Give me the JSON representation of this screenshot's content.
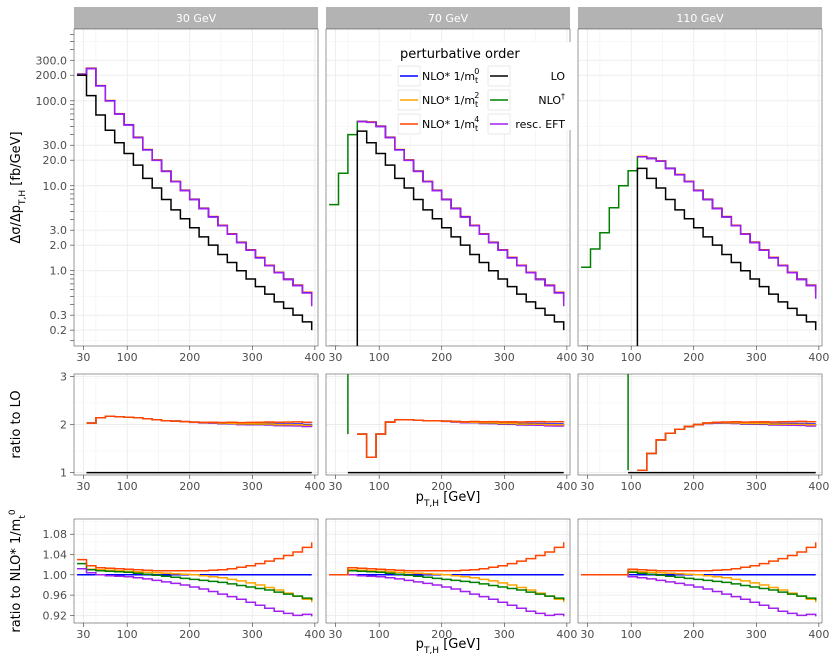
{
  "colors": {
    "nlo0": "#0000ff",
    "nlo2": "#ffa500",
    "nlo4": "#ff4500",
    "lo": "#000000",
    "nlod": "#008000",
    "eft": "#a020f0"
  },
  "legend": {
    "title": "perturbative order",
    "entries": [
      {
        "key": "nlo0",
        "label": "NLO* 1/m",
        "sup": "0",
        "sub": "t"
      },
      {
        "key": "nlo2",
        "label": "NLO* 1/m",
        "sup": "2",
        "sub": "t"
      },
      {
        "key": "nlo4",
        "label": "NLO* 1/m",
        "sup": "4",
        "sub": "t"
      },
      {
        "key": "lo",
        "label": "LO",
        "sup": "",
        "sub": ""
      },
      {
        "key": "nlod",
        "label": "NLO",
        "sup": "†",
        "sub": ""
      },
      {
        "key": "eft",
        "label": "resc. EFT",
        "sup": "",
        "sub": ""
      }
    ]
  },
  "chart_data": {
    "type": "line",
    "facets": [
      "30 GeV",
      "70 GeV",
      "110 GeV"
    ],
    "x_edges": [
      20,
      30,
      40,
      50,
      60,
      70,
      80,
      90,
      100,
      110,
      120,
      130,
      140,
      150,
      160,
      170,
      180,
      190,
      200,
      210,
      220,
      230,
      240,
      250,
      260,
      270,
      280,
      290,
      300,
      310,
      320,
      330,
      340,
      350,
      360,
      370,
      380,
      390,
      400
    ],
    "xticks": [
      30,
      100,
      200,
      300,
      400
    ],
    "xlim": [
      15,
      405
    ],
    "xlabel": {
      "main": "p",
      "sub": "T,H",
      "unit": " [GeV]"
    },
    "rows": [
      {
        "ylabel": {
          "parts": [
            [
              "Δσ/Δp",
              ""
            ],
            [
              "T,H",
              "sub"
            ],
            [
              " [fb/GeV]",
              ""
            ]
          ]
        },
        "yscale": "log",
        "ylim": [
          0.13,
          700
        ],
        "yticks": [
          0.2,
          0.3,
          1.0,
          2.0,
          3.0,
          10.0,
          20.0,
          30.0,
          100.0,
          200.0,
          300.0
        ],
        "ytick_labels": [
          "0.2",
          "0.3",
          "1.0",
          "2.0",
          "3.0",
          "10.0",
          "20.0",
          "30.0",
          "100.0",
          "200.0",
          "300.0"
        ]
      },
      {
        "ylabel": {
          "parts": [
            [
              "ratio to LO",
              ""
            ]
          ]
        },
        "yscale": "linear",
        "ylim": [
          0.95,
          3.05
        ],
        "yticks": [
          1,
          2,
          3
        ],
        "ytick_labels": [
          "1",
          "2",
          "3"
        ]
      },
      {
        "ylabel": {
          "parts": [
            [
              "ratio to NLO* 1/m",
              ""
            ],
            [
              "t",
              "sub"
            ],
            [
              "0",
              "sup"
            ]
          ]
        },
        "yscale": "linear",
        "ylim": [
          0.905,
          1.11
        ],
        "yticks": [
          0.92,
          0.96,
          1.0,
          1.04,
          1.08
        ],
        "ytick_labels": [
          "0.92",
          "0.96",
          "1.00",
          "1.04",
          "1.08"
        ]
      }
    ],
    "series_keys": [
      "lo",
      "nlod",
      "nlo0",
      "nlo2",
      "nlo4",
      "eft"
    ],
    "cuts": [
      0,
      4,
      8
    ],
    "dist": {
      "nlo": [
        [
          null,
          null,
          null,
          null,
          null,
          null,
          null,
          null,
          null,
          null,
          null,
          null,
          null,
          null,
          null,
          null,
          null,
          null,
          null,
          null,
          null,
          null,
          null,
          null,
          null,
          null,
          null,
          null,
          null,
          null,
          null,
          null,
          null,
          null,
          null,
          null,
          null,
          null
        ],
        [
          null,
          null,
          null,
          null,
          null,
          null,
          null,
          null,
          null,
          null,
          null,
          null,
          null,
          null,
          null,
          null,
          null,
          null,
          null,
          null,
          null,
          null,
          null,
          null,
          null,
          null,
          null,
          null,
          null,
          null,
          null,
          null,
          null,
          null,
          null,
          null,
          null,
          null
        ],
        [
          null,
          null,
          null,
          null,
          null,
          null,
          null,
          null,
          null,
          null,
          null,
          null,
          null,
          null,
          null,
          null,
          null,
          null,
          null,
          null,
          null,
          null,
          null,
          null,
          null,
          null,
          null,
          null,
          null,
          null,
          null,
          null,
          null,
          null,
          null,
          null,
          null,
          null
        ]
      ],
      "lo_30": [
        200,
        115,
        68,
        45,
        32,
        24,
        17.5,
        12.2,
        9.4,
        6.9,
        5.2,
        4.1,
        3.2,
        2.5,
        2.0,
        1.55,
        1.25,
        1.0,
        0.8,
        0.65,
        0.53,
        0.43,
        0.36,
        0.3,
        0.25,
        0.2
      ],
      "nlo_30": [
        205,
        240,
        150,
        100,
        70,
        52,
        37,
        26.5,
        20,
        14.8,
        11.2,
        8.8,
        6.9,
        5.4,
        4.3,
        3.4,
        2.7,
        2.15,
        1.75,
        1.42,
        1.15,
        0.95,
        0.79,
        0.67,
        0.55,
        0.45
      ],
      "lo_70_from80": [
        44,
        32,
        24,
        17.5,
        12.2,
        9.4,
        6.9,
        5.2,
        4.1,
        3.2,
        2.5,
        2.0,
        1.55,
        1.25,
        1.0,
        0.8,
        0.65,
        0.53,
        0.43,
        0.36,
        0.3,
        0.25,
        0.2
      ],
      "nlo_70_from50": [
        6.0,
        14,
        40,
        57,
        56,
        50,
        37,
        26.5,
        20,
        14.8,
        11.2,
        8.8,
        6.9,
        5.4,
        4.3,
        3.4,
        2.7,
        2.15,
        1.75,
        1.42,
        1.15,
        0.95,
        0.79,
        0.67,
        0.55,
        0.45
      ],
      "lo_110_from120": [
        16,
        12.2,
        9.4,
        6.9,
        5.2,
        4.1,
        3.2,
        2.5,
        2.0,
        1.55,
        1.25,
        1.0,
        0.8,
        0.65,
        0.53,
        0.43,
        0.36,
        0.3,
        0.25,
        0.2
      ],
      "nlo_110_from70": [
        1.1,
        1.8,
        2.8,
        5.5,
        10,
        15,
        22,
        21,
        19.5,
        16,
        13.5,
        11.2,
        8.8,
        6.9,
        5.4,
        4.3,
        3.4,
        2.7,
        2.15,
        1.75,
        1.42,
        1.15,
        0.95,
        0.79,
        0.67,
        0.55,
        0.45
      ],
      "ratio_30_from20": [
        null,
        2.03,
        2.14,
        2.17,
        2.16,
        2.15,
        2.14,
        2.12,
        2.1,
        2.08,
        2.07,
        2.06,
        2.05,
        2.04,
        2.04,
        2.03,
        2.03,
        2.02,
        2.02,
        2.02,
        2.02,
        2.01,
        2.01,
        2.01,
        2.0,
        2.0
      ],
      "ratio_70_from50": [
        3.2,
        1.8,
        1.32,
        1.8,
        2.05,
        2.1,
        2.1,
        2.09,
        2.08,
        2.08,
        2.07,
        2.06,
        2.05,
        2.05,
        2.04,
        2.04,
        2.03,
        2.03,
        2.02,
        2.02,
        2.02,
        2.01,
        2.01,
        2.01,
        2.0,
        2.0
      ],
      "ratio_110_from100": [
        3.2,
        1.05,
        1.4,
        1.68,
        1.82,
        1.9,
        1.96,
        2.0,
        2.03,
        2.04,
        2.04,
        2.04,
        2.03,
        2.03,
        2.03,
        2.02,
        2.02,
        2.02,
        2.02,
        2.01,
        2.01,
        2.0,
        2.0,
        2.0,
        2.0
      ],
      "dev2": [
        0.012,
        0.011,
        0.01,
        0.009,
        0.008,
        0.007,
        0.006,
        0.005,
        0.004,
        0.003,
        0.002,
        0.001,
        0.0,
        -0.002,
        -0.004,
        -0.006,
        -0.009,
        -0.012,
        -0.016,
        -0.02,
        -0.025,
        -0.03,
        -0.036,
        -0.042,
        -0.048,
        -0.054
      ],
      "dev4": [
        0.03,
        0.018,
        0.014,
        0.013,
        0.012,
        0.011,
        0.01,
        0.009,
        0.008,
        0.008,
        0.008,
        0.008,
        0.008,
        0.008,
        0.009,
        0.01,
        0.012,
        0.015,
        0.018,
        0.022,
        0.027,
        0.032,
        0.038,
        0.045,
        0.054,
        0.064
      ],
      "devg": [
        0.022,
        0.01,
        0.008,
        0.007,
        0.006,
        0.005,
        0.003,
        0.001,
        -0.001,
        -0.003,
        -0.005,
        -0.007,
        -0.009,
        -0.011,
        -0.013,
        -0.015,
        -0.018,
        -0.021,
        -0.024,
        -0.027,
        -0.03,
        -0.034,
        -0.038,
        -0.042,
        -0.046,
        -0.05
      ],
      "deve": [
        0.012,
        0.004,
        0.0,
        -0.002,
        -0.003,
        -0.004,
        -0.006,
        -0.008,
        -0.011,
        -0.014,
        -0.017,
        -0.02,
        -0.024,
        -0.028,
        -0.033,
        -0.038,
        -0.043,
        -0.048,
        -0.054,
        -0.06,
        -0.066,
        -0.072,
        -0.076,
        -0.08,
        -0.078,
        -0.082
      ]
    }
  }
}
